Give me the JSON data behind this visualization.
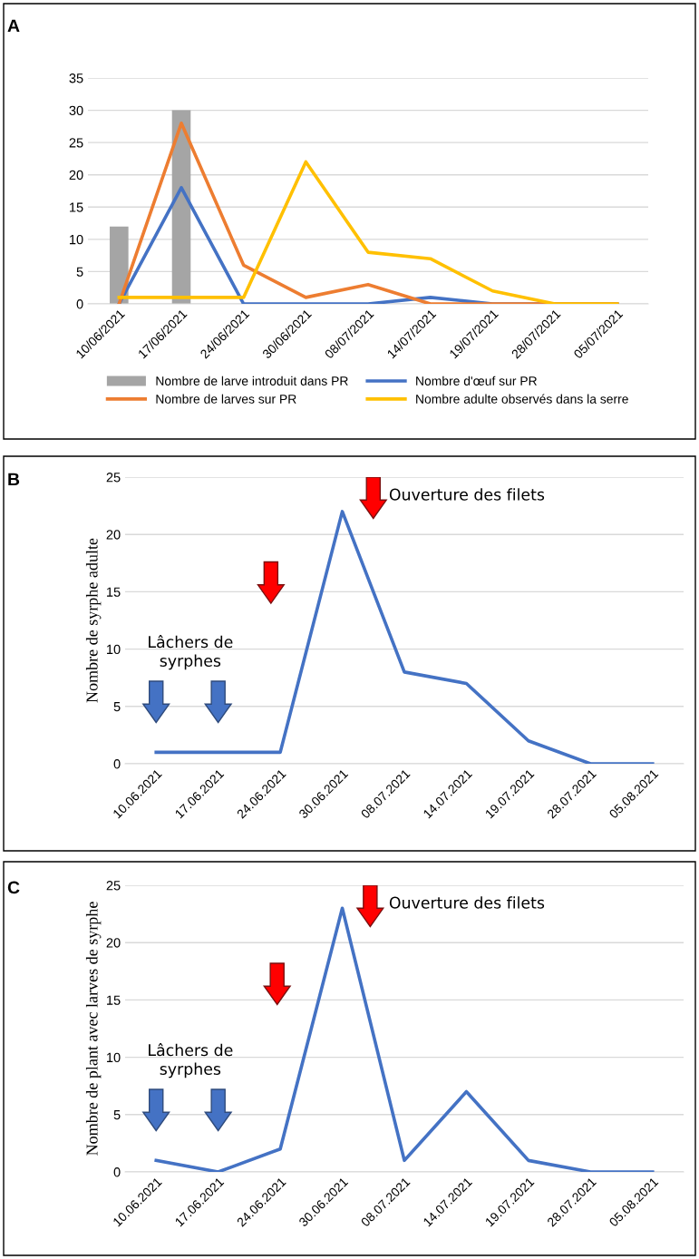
{
  "chart_data": [
    {
      "type": "line",
      "title": "A",
      "categories": [
        "10/06/2021",
        "17/06/2021",
        "24/06/2021",
        "30/06/2021",
        "08/07/2021",
        "14/07/2021",
        "19/07/2021",
        "28/07/2021",
        "05/07/2021"
      ],
      "ylim": [
        0,
        35
      ],
      "yticks": [
        0,
        5,
        10,
        15,
        20,
        25,
        30,
        35
      ],
      "grid": "y",
      "legend": "bottom",
      "marker": "none",
      "line_style": "solid",
      "series": [
        {
          "name": "Nombre de larve introduit dans PR",
          "type": "bar",
          "color": "#a5a5a5",
          "values": [
            12,
            30,
            null,
            null,
            null,
            null,
            null,
            null,
            null
          ]
        },
        {
          "name": "Nombre d'œuf sur PR",
          "color": "#4472c4",
          "values": [
            0,
            18,
            0,
            0,
            0,
            1,
            0,
            0,
            0
          ]
        },
        {
          "name": "Nombre de larves sur PR",
          "color": "#ed7d31",
          "values": [
            0,
            28,
            6,
            1,
            3,
            0,
            0,
            0,
            0
          ]
        },
        {
          "name": "Nombre adulte observés dans la serre",
          "color": "#ffc000",
          "values": [
            1,
            1,
            1,
            22,
            8,
            7,
            2,
            0,
            0
          ]
        }
      ]
    },
    {
      "type": "line",
      "title": "B",
      "ylabel": "Nombre de syrphe adulte",
      "categories": [
        "10.06.2021",
        "17.06.2021",
        "24.06.2021",
        "30.06.2021",
        "08.07.2021",
        "14.07.2021",
        "19.07.2021",
        "28.07.2021",
        "05.08.2021"
      ],
      "ylim": [
        0,
        25
      ],
      "yticks": [
        0,
        5,
        10,
        15,
        20,
        25
      ],
      "grid": "y",
      "marker": "none",
      "line_style": "solid",
      "series": [
        {
          "color": "#4472c4",
          "values": [
            1,
            1,
            1,
            22,
            8,
            7,
            2,
            0,
            0
          ]
        }
      ],
      "annotations": [
        "Lâchers de\nsyrphes",
        "Ouverture des filets"
      ]
    },
    {
      "type": "line",
      "title": "C",
      "ylabel": "Nombre de plant avec larves de syrphe",
      "categories": [
        "10.06.2021",
        "17.06.2021",
        "24.06.2021",
        "30.06.2021",
        "08.07.2021",
        "14.07.2021",
        "19.07.2021",
        "28.07.2021",
        "05.08.2021"
      ],
      "ylim": [
        0,
        25
      ],
      "yticks": [
        0,
        5,
        10,
        15,
        20,
        25
      ],
      "grid": "y",
      "marker": "none",
      "line_style": "solid",
      "series": [
        {
          "color": "#4472c4",
          "values": [
            1,
            0,
            2,
            23,
            1,
            7,
            1,
            0,
            0
          ]
        }
      ],
      "annotations": [
        "Lâchers de\nsyrphes",
        "Ouverture des filets"
      ]
    }
  ]
}
